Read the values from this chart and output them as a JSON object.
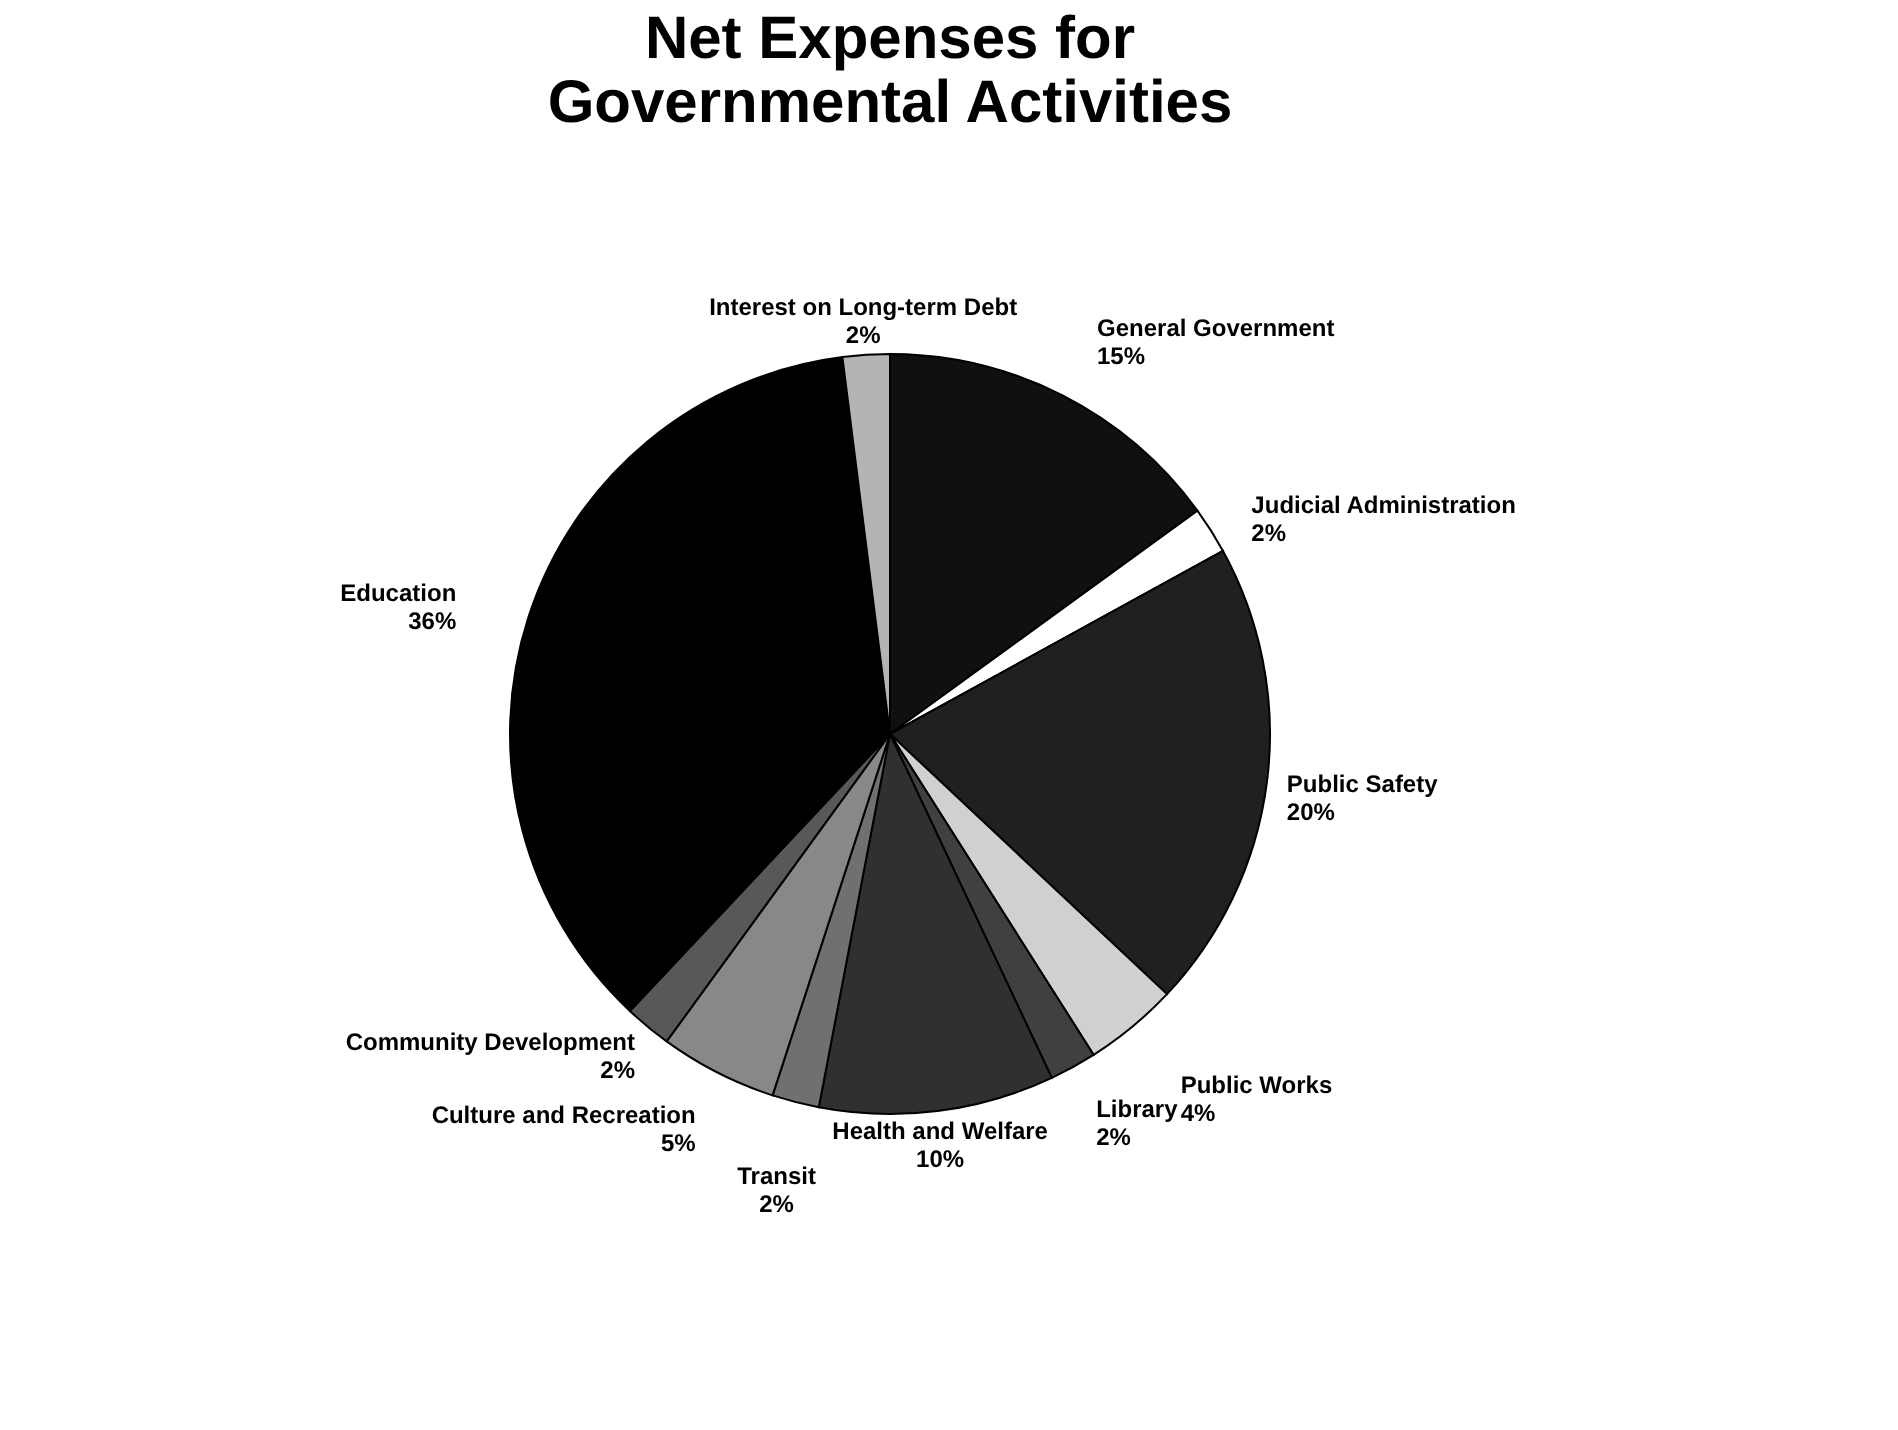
{
  "chart_data": {
    "type": "pie",
    "title": "Net Expenses for Governmental Activities",
    "categories": [
      "General Government",
      "Judicial Administration",
      "Public Safety",
      "Public Works",
      "Library",
      "Health and Welfare",
      "Transit",
      "Culture and Recreation",
      "Community Development",
      "Education",
      "Interest on Long-term Debt"
    ],
    "values": [
      15,
      2,
      20,
      4,
      2,
      10,
      2,
      5,
      2,
      36,
      2
    ],
    "value_labels": [
      "15%",
      "2%",
      "20%",
      "4%",
      "2%",
      "10%",
      "2%",
      "5%",
      "2%",
      "36%",
      "2%"
    ],
    "colors": [
      "#101010",
      "#ffffff",
      "#202020",
      "#d0d0d0",
      "#404040",
      "#303030",
      "#707070",
      "#888888",
      "#585858",
      "#000000",
      "#b4b4b4"
    ],
    "legend": false
  }
}
